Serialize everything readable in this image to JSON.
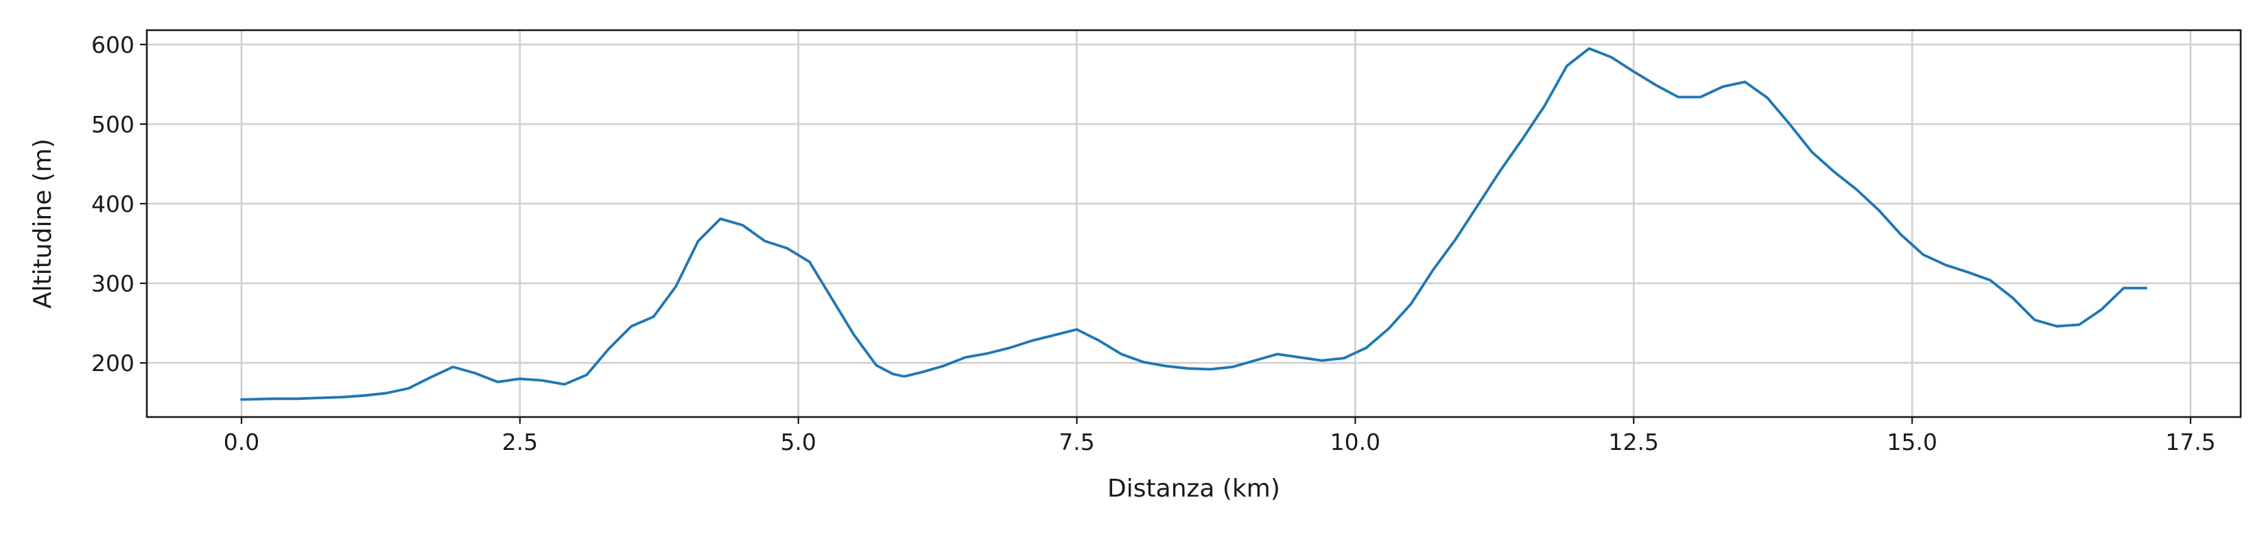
{
  "chart_data": {
    "type": "line",
    "title": "",
    "xlabel": "Distanza (km)",
    "ylabel": "Altitudine (m)",
    "xlim": [
      -0.85,
      17.95
    ],
    "ylim": [
      132,
      618
    ],
    "xticks": [
      0.0,
      2.5,
      5.0,
      7.5,
      10.0,
      12.5,
      15.0,
      17.5
    ],
    "xtick_labels": [
      "0.0",
      "2.5",
      "5.0",
      "7.5",
      "10.0",
      "12.5",
      "15.0",
      "17.5"
    ],
    "yticks": [
      200,
      300,
      400,
      500,
      600
    ],
    "ytick_labels": [
      "200",
      "300",
      "400",
      "500",
      "600"
    ],
    "grid": true,
    "legend": "none",
    "color": "#1f77b4",
    "series": [
      {
        "x": [
          0.0,
          0.3,
          0.5,
          0.7,
          0.9,
          1.1,
          1.3,
          1.5,
          1.7,
          1.9,
          2.1,
          2.3,
          2.5,
          2.7,
          2.9,
          3.1,
          3.3,
          3.5,
          3.7,
          3.9,
          4.1,
          4.3,
          4.5,
          4.7,
          4.9,
          5.1,
          5.3,
          5.5,
          5.7,
          5.85,
          5.95,
          6.1,
          6.3,
          6.5,
          6.7,
          6.9,
          7.1,
          7.3,
          7.5,
          7.7,
          7.9,
          8.1,
          8.3,
          8.5,
          8.7,
          8.9,
          9.1,
          9.3,
          9.5,
          9.7,
          9.9,
          10.1,
          10.3,
          10.5,
          10.7,
          10.9,
          11.1,
          11.3,
          11.5,
          11.7,
          11.9,
          12.1,
          12.3,
          12.5,
          12.7,
          12.9,
          13.1,
          13.3,
          13.5,
          13.7,
          13.9,
          14.1,
          14.3,
          14.5,
          14.7,
          14.9,
          15.1,
          15.3,
          15.5,
          15.7,
          15.9,
          16.1,
          16.3,
          16.5,
          16.7,
          16.9,
          17.1
        ],
        "y": [
          154,
          155,
          155,
          156,
          157,
          159,
          162,
          168,
          182,
          195,
          187,
          176,
          180,
          178,
          173,
          185,
          218,
          246,
          258,
          296,
          353,
          381,
          373,
          353,
          344,
          327,
          281,
          235,
          197,
          186,
          183,
          188,
          196,
          207,
          212,
          219,
          228,
          235,
          242,
          228,
          211,
          201,
          196,
          193,
          192,
          195,
          203,
          211,
          207,
          203,
          206,
          219,
          243,
          274,
          317,
          355,
          398,
          441,
          481,
          523,
          573,
          595,
          584,
          566,
          549,
          534,
          534,
          547,
          553,
          533,
          500,
          465,
          440,
          418,
          392,
          361,
          336,
          323,
          314,
          304,
          282,
          254,
          246,
          248,
          267,
          294,
          294
        ]
      }
    ]
  }
}
